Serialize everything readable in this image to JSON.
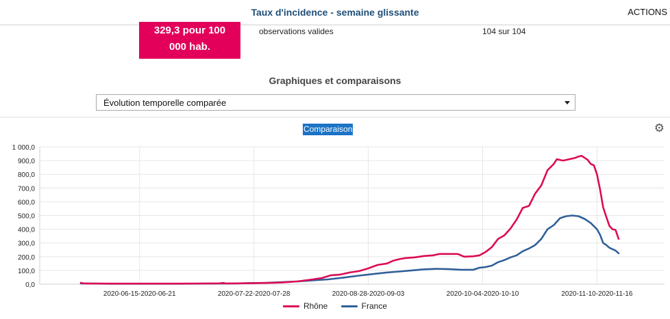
{
  "header": {
    "title": "Taux d'incidence - semaine glissante",
    "actions_label": "ACTIONS"
  },
  "summary": {
    "value_line1": "329,3 pour 100",
    "value_line2": "000 hab.",
    "observations_label": "observations valides",
    "observations_value": "104 sur 104"
  },
  "section": {
    "title": "Graphiques et comparaisons"
  },
  "select": {
    "selected": "Évolution temporelle comparée"
  },
  "chart_panel": {
    "title": "Comparaison",
    "settings_icon": "gear-icon"
  },
  "colors": {
    "rhone": "#dd0b55",
    "france": "#2f5f98",
    "accent": "#e2005a"
  },
  "chart_data": {
    "type": "line",
    "title": "Comparaison",
    "ylim": [
      0,
      1000
    ],
    "y_ticks": [
      "0,0",
      "100,0",
      "200,0",
      "300,0",
      "400,0",
      "500,0",
      "600,0",
      "700,0",
      "800,0",
      "900,0",
      "1 000,0"
    ],
    "x_ticks": [
      "2020-06-15-2020-06-21",
      "2020-07-22-2020-07-28",
      "2020-08-28-2020-09-03",
      "2020-10-04-2020-10-10",
      "2020-11-10-2020-11-16"
    ],
    "x_tick_index": [
      19,
      56,
      93,
      130,
      167
    ],
    "grid": true,
    "legend_position": "bottom",
    "series": [
      {
        "name": "Rhône",
        "color": "#dd0b55",
        "points": [
          [
            0,
            10
          ],
          [
            1,
            5
          ],
          [
            10,
            4
          ],
          [
            20,
            4
          ],
          [
            30,
            4
          ],
          [
            40,
            5
          ],
          [
            45,
            6
          ],
          [
            46,
            9
          ],
          [
            47,
            5
          ],
          [
            55,
            7
          ],
          [
            62,
            10
          ],
          [
            65,
            12
          ],
          [
            70,
            20
          ],
          [
            75,
            35
          ],
          [
            78,
            45
          ],
          [
            81,
            65
          ],
          [
            84,
            70
          ],
          [
            87,
            85
          ],
          [
            90,
            95
          ],
          [
            93,
            115
          ],
          [
            96,
            140
          ],
          [
            99,
            150
          ],
          [
            101,
            170
          ],
          [
            103,
            182
          ],
          [
            105,
            190
          ],
          [
            108,
            195
          ],
          [
            111,
            205
          ],
          [
            114,
            210
          ],
          [
            116,
            220
          ],
          [
            119,
            220
          ],
          [
            122,
            220
          ],
          [
            124,
            200
          ],
          [
            127,
            203
          ],
          [
            129,
            210
          ],
          [
            131,
            235
          ],
          [
            133,
            270
          ],
          [
            135,
            330
          ],
          [
            137,
            355
          ],
          [
            139,
            405
          ],
          [
            141,
            470
          ],
          [
            143,
            555
          ],
          [
            145,
            570
          ],
          [
            147,
            660
          ],
          [
            149,
            720
          ],
          [
            151,
            830
          ],
          [
            153,
            875
          ],
          [
            154,
            910
          ],
          [
            156,
            900
          ],
          [
            158,
            910
          ],
          [
            160,
            920
          ],
          [
            161,
            930
          ],
          [
            162,
            935
          ],
          [
            164,
            905
          ],
          [
            165,
            875
          ],
          [
            166,
            865
          ],
          [
            167,
            800
          ],
          [
            168,
            690
          ],
          [
            169,
            560
          ],
          [
            170,
            490
          ],
          [
            171,
            425
          ],
          [
            172,
            400
          ],
          [
            173,
            395
          ],
          [
            174,
            330
          ]
        ]
      },
      {
        "name": "France",
        "color": "#2f5f98",
        "points": [
          [
            0,
            5
          ],
          [
            10,
            3
          ],
          [
            20,
            3
          ],
          [
            30,
            3
          ],
          [
            40,
            4
          ],
          [
            50,
            5
          ],
          [
            55,
            8
          ],
          [
            60,
            10
          ],
          [
            65,
            15
          ],
          [
            70,
            20
          ],
          [
            75,
            28
          ],
          [
            80,
            35
          ],
          [
            85,
            48
          ],
          [
            90,
            62
          ],
          [
            95,
            75
          ],
          [
            99,
            85
          ],
          [
            103,
            92
          ],
          [
            107,
            100
          ],
          [
            111,
            108
          ],
          [
            115,
            112
          ],
          [
            119,
            110
          ],
          [
            123,
            105
          ],
          [
            127,
            105
          ],
          [
            129,
            120
          ],
          [
            131,
            125
          ],
          [
            133,
            135
          ],
          [
            135,
            160
          ],
          [
            137,
            175
          ],
          [
            139,
            195
          ],
          [
            141,
            210
          ],
          [
            143,
            240
          ],
          [
            145,
            260
          ],
          [
            147,
            285
          ],
          [
            149,
            330
          ],
          [
            151,
            400
          ],
          [
            153,
            430
          ],
          [
            155,
            480
          ],
          [
            157,
            495
          ],
          [
            159,
            500
          ],
          [
            161,
            495
          ],
          [
            163,
            475
          ],
          [
            165,
            445
          ],
          [
            167,
            400
          ],
          [
            168,
            360
          ],
          [
            169,
            300
          ],
          [
            170,
            285
          ],
          [
            171,
            265
          ],
          [
            173,
            245
          ],
          [
            174,
            225
          ]
        ]
      }
    ]
  }
}
